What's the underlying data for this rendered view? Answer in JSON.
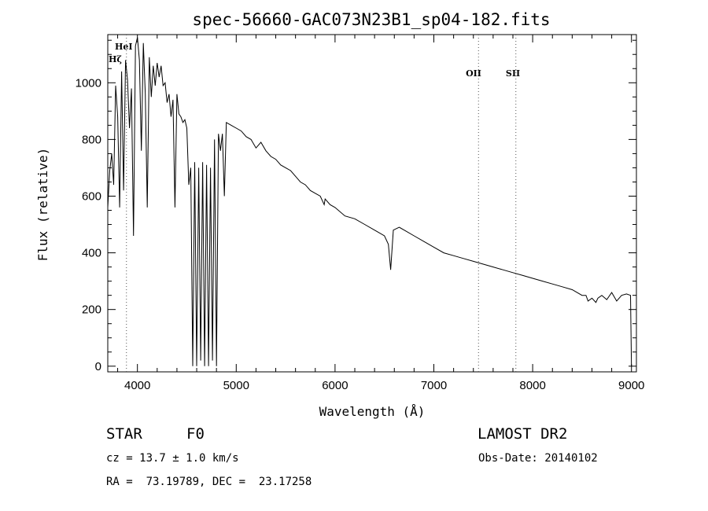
{
  "chart_data": {
    "type": "line",
    "title": "spec-56660-GAC073N23B1_sp04-182.fits",
    "xlabel": "Wavelength (Å)",
    "ylabel": "Flux (relative)",
    "xlim": [
      3700,
      9050
    ],
    "ylim": [
      -20,
      1170
    ],
    "x_ticks": [
      "4000",
      "5000",
      "6000",
      "7000",
      "8000",
      "9000"
    ],
    "y_ticks": [
      "0",
      "200",
      "400",
      "600",
      "800",
      "1000"
    ],
    "grid": false,
    "line_markers": [
      {
        "name": "HeI",
        "wavelength": 3889
      },
      {
        "name": "Hζ",
        "wavelength": 3889
      },
      {
        "name": "OII",
        "wavelength": 7452
      },
      {
        "name": "SII",
        "wavelength": 7830
      }
    ],
    "series": [
      {
        "x": [
          3700,
          3720,
          3740,
          3760,
          3780,
          3800,
          3820,
          3840,
          3860,
          3880,
          3900,
          3920,
          3940,
          3960,
          3980,
          4000,
          4020,
          4040,
          4060,
          4080,
          4100,
          4120,
          4140,
          4160,
          4180,
          4200,
          4220,
          4240,
          4260,
          4280,
          4300,
          4320,
          4340,
          4360,
          4380,
          4400,
          4420,
          4440,
          4460,
          4480,
          4500,
          4520,
          4540,
          4560,
          4580,
          4600,
          4620,
          4640,
          4660,
          4680,
          4700,
          4720,
          4740,
          4760,
          4780,
          4800,
          4820,
          4840,
          4860,
          4880,
          4900,
          4950,
          5000,
          5050,
          5100,
          5150,
          5200,
          5250,
          5300,
          5350,
          5400,
          5450,
          5500,
          5550,
          5600,
          5650,
          5700,
          5750,
          5800,
          5850,
          5890,
          5900,
          5950,
          6000,
          6100,
          6200,
          6300,
          6400,
          6500,
          6540,
          6563,
          6590,
          6650,
          6700,
          6800,
          6900,
          7000,
          7100,
          7200,
          7300,
          7400,
          7500,
          7600,
          7700,
          7800,
          7900,
          8000,
          8100,
          8200,
          8300,
          8400,
          8500,
          8540,
          8560,
          8600,
          8640,
          8660,
          8700,
          8750,
          8800,
          8850,
          8900,
          8950,
          8990,
          9000
        ],
        "y": [
          560,
          690,
          750,
          640,
          990,
          880,
          560,
          1040,
          620,
          1080,
          1010,
          840,
          980,
          460,
          1130,
          1160,
          1080,
          760,
          1140,
          960,
          560,
          1090,
          950,
          1060,
          990,
          1070,
          1020,
          1060,
          990,
          1000,
          930,
          960,
          880,
          940,
          560,
          960,
          890,
          880,
          860,
          870,
          840,
          640,
          700,
          0,
          720,
          0,
          700,
          20,
          720,
          0,
          710,
          0,
          700,
          20,
          800,
          0,
          820,
          760,
          820,
          600,
          860,
          850,
          840,
          830,
          810,
          800,
          770,
          790,
          760,
          740,
          730,
          710,
          700,
          690,
          670,
          650,
          640,
          620,
          610,
          600,
          570,
          590,
          570,
          560,
          530,
          520,
          500,
          480,
          460,
          430,
          340,
          480,
          490,
          480,
          460,
          440,
          420,
          400,
          390,
          380,
          370,
          360,
          350,
          340,
          330,
          320,
          310,
          300,
          290,
          280,
          270,
          250,
          250,
          230,
          240,
          225,
          240,
          250,
          235,
          260,
          230,
          250,
          255,
          250,
          0
        ]
      }
    ]
  },
  "info": {
    "class_label": "STAR",
    "subclass": "F0",
    "survey": "LAMOST DR2",
    "cz": "cz = 13.7 ± 1.0 km/s",
    "obs_date": "Obs-Date: 20140102",
    "radec": "RA =  73.19789, DEC =  23.17258"
  }
}
